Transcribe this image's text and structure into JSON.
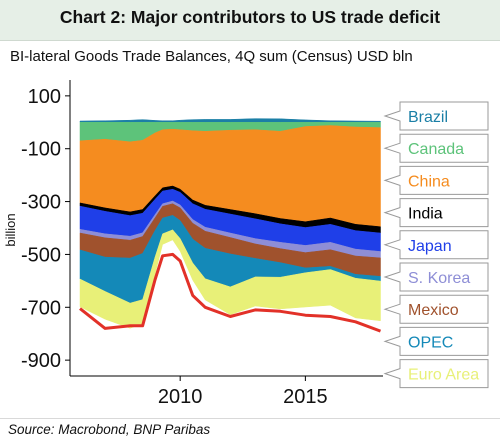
{
  "title": "Chart 2: Major contributors to US trade deficit",
  "source": "Source: Macrobond, BNP Paribas",
  "chart_data": {
    "type": "area",
    "title": "",
    "subtitle": "BI-lateral Goods Trade Balances, 4Q sum (Census) USD bln",
    "ylabel": "billion",
    "xlabel": "",
    "stacked": true,
    "ylim": [
      -960,
      160
    ],
    "xlim": [
      2005.6,
      2018.1
    ],
    "yticks": [
      100,
      -100,
      -300,
      -500,
      -700,
      -900
    ],
    "xticks": [
      2010,
      2015
    ],
    "grid": false,
    "legend_position": "right",
    "x": [
      2006.0,
      2007.0,
      2008.0,
      2008.5,
      2009.0,
      2009.3,
      2009.7,
      2010.0,
      2010.5,
      2011.0,
      2012.0,
      2013.0,
      2014.0,
      2015.0,
      2016.0,
      2017.0,
      2018.0
    ],
    "series": [
      {
        "name": "Brazil",
        "color": "#1b7fa6",
        "values": [
          5,
          6,
          8,
          10,
          7,
          6,
          6,
          8,
          10,
          11,
          11,
          14,
          13,
          9,
          6,
          5,
          4
        ]
      },
      {
        "name": "Canada",
        "color": "#5dc37a",
        "values": [
          -70,
          -64,
          -74,
          -68,
          -40,
          -28,
          -26,
          -28,
          -32,
          -34,
          -30,
          -28,
          -34,
          -16,
          -12,
          -18,
          -20
        ]
      },
      {
        "name": "China",
        "color": "#f58c1f",
        "values": [
          -235,
          -260,
          -265,
          -262,
          -238,
          -220,
          -215,
          -225,
          -262,
          -280,
          -300,
          -318,
          -330,
          -360,
          -350,
          -368,
          -375
        ]
      },
      {
        "name": "India",
        "color": "#000000",
        "values": [
          -12,
          -13,
          -14,
          -14,
          -13,
          -12,
          -12,
          -12,
          -14,
          -15,
          -17,
          -19,
          -20,
          -22,
          -24,
          -24,
          -24
        ]
      },
      {
        "name": "Japan",
        "color": "#1f3fe8",
        "values": [
          -88,
          -85,
          -78,
          -74,
          -58,
          -48,
          -45,
          -48,
          -60,
          -68,
          -72,
          -75,
          -70,
          -68,
          -68,
          -70,
          -70
        ]
      },
      {
        "name": "S. Korea",
        "color": "#8e8ed6",
        "values": [
          -14,
          -15,
          -15,
          -14,
          -12,
          -10,
          -10,
          -11,
          -14,
          -15,
          -17,
          -20,
          -24,
          -27,
          -28,
          -26,
          -24
        ]
      },
      {
        "name": "Mexico",
        "color": "#a0522d",
        "values": [
          -64,
          -73,
          -68,
          -64,
          -48,
          -44,
          -44,
          -48,
          -60,
          -65,
          -62,
          -55,
          -53,
          -58,
          -63,
          -69,
          -70
        ]
      },
      {
        "name": "OPEC",
        "color": "#1489b8",
        "values": [
          -110,
          -130,
          -170,
          -175,
          -100,
          -60,
          -55,
          -68,
          -90,
          -115,
          -125,
          -70,
          -55,
          -18,
          -12,
          -15,
          -18
        ]
      },
      {
        "name": "Euro Area",
        "color": "#e8f078",
        "values": [
          -105,
          -105,
          -95,
          -92,
          -65,
          -40,
          -38,
          -48,
          -65,
          -80,
          -105,
          -110,
          -120,
          -130,
          -135,
          -150,
          -150
        ]
      }
    ],
    "total_line": {
      "color": "#e23128",
      "values": [
        -705,
        -780,
        -770,
        -770,
        -595,
        -505,
        -500,
        -525,
        -655,
        -700,
        -735,
        -710,
        -715,
        -730,
        -735,
        -755,
        -790
      ]
    }
  }
}
